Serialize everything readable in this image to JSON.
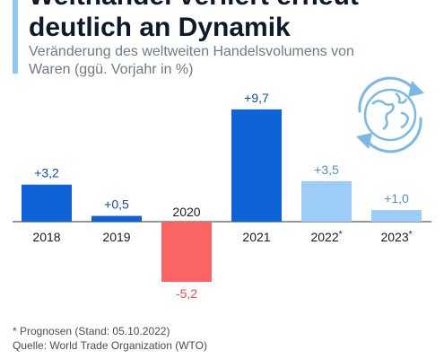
{
  "header": {
    "title": "Welthandel verliert erneut deutlich an Dynamik",
    "subtitle": "Veränderung des weltweiten Handelsvolumens von Waren (ggü. Vorjahr in %)"
  },
  "footer": {
    "footnote": "* Prognosen (Stand: 05.10.2022)",
    "source": "Quelle: World Trade Organization (WTO)"
  },
  "colors": {
    "accent": "#8ec8f5",
    "actual_positive": "#0e63d6",
    "actual_negative": "#f96465",
    "forecast": "#9dcdf7",
    "globe": "#7ab8e6"
  },
  "icons": [
    "globe-icon",
    "circular-arrows-icon"
  ],
  "chart_data": {
    "type": "bar",
    "title": "Welthandel verliert erneut deutlich an Dynamik",
    "subtitle": "Veränderung des weltweiten Handelsvolumens von Waren (ggü. Vorjahr in %)",
    "categories": [
      "2018",
      "2019",
      "2020",
      "2021",
      "2022*",
      "2023*"
    ],
    "values": [
      3.2,
      0.5,
      -5.2,
      9.7,
      3.5,
      1.0
    ],
    "value_labels": [
      "+3,2",
      "+0,5",
      "-5,2",
      "+9,7",
      "+3,5",
      "+1,0"
    ],
    "forecast": [
      false,
      false,
      false,
      false,
      true,
      true
    ],
    "xlabel": "",
    "ylabel": "",
    "ylim": [
      -5.2,
      9.7
    ],
    "grid": false,
    "legend": "none"
  }
}
